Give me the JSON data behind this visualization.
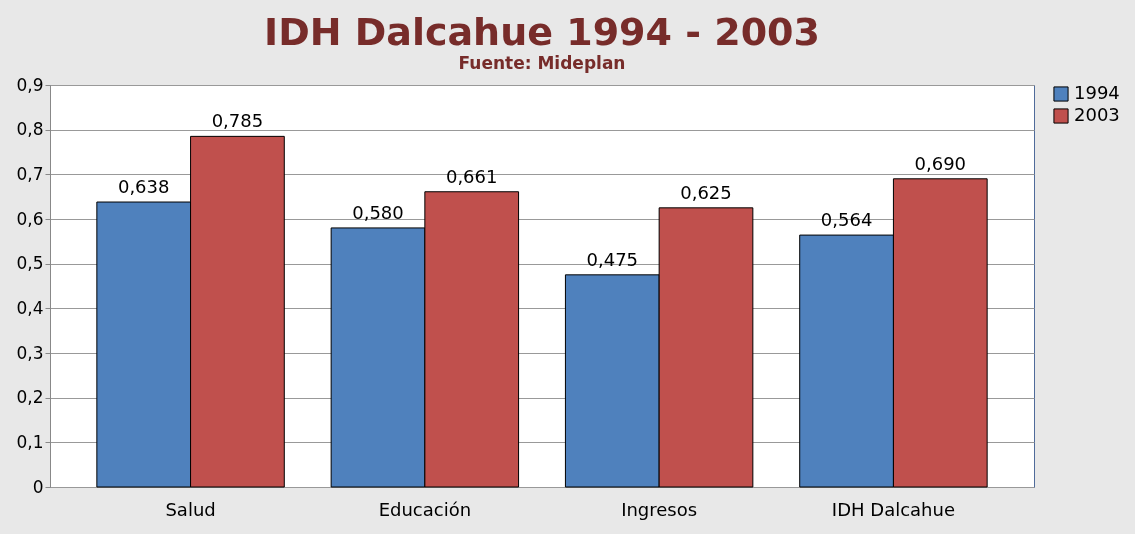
{
  "chart_data": {
    "type": "bar",
    "title": "IDH Dalcahue 1994  - 2003",
    "subtitle": "Fuente: Mideplan",
    "categories": [
      "Salud",
      "Educación",
      "Ingresos",
      "IDH Dalcahue"
    ],
    "series": [
      {
        "name": "1994",
        "color": "#4f81bd",
        "values": [
          0.638,
          0.58,
          0.475,
          0.564
        ],
        "value_labels": [
          "0,638",
          "0,580",
          "0,475",
          "0,564"
        ]
      },
      {
        "name": "2003",
        "color": "#c0504d",
        "values": [
          0.785,
          0.661,
          0.625,
          0.69
        ],
        "value_labels": [
          "0,785",
          "0,661",
          "0,625",
          "0,690"
        ]
      }
    ],
    "ylim": [
      0,
      0.9
    ],
    "yticks": [
      0,
      {
        "value": 0.1,
        "label": "0,1"
      },
      {
        "value": 0.2,
        "label": "0,2"
      },
      {
        "value": 0.3,
        "label": "0,3"
      },
      {
        "value": 0.4,
        "label": "0,4"
      },
      {
        "value": 0.5,
        "label": "0,5"
      },
      {
        "value": 0.6,
        "label": "0,6"
      },
      {
        "value": 0.7,
        "label": "0,7"
      },
      {
        "value": 0.8,
        "label": "0,8"
      },
      {
        "value": 0.9,
        "label": "0,9"
      }
    ],
    "grid": "y",
    "legend": "right"
  }
}
